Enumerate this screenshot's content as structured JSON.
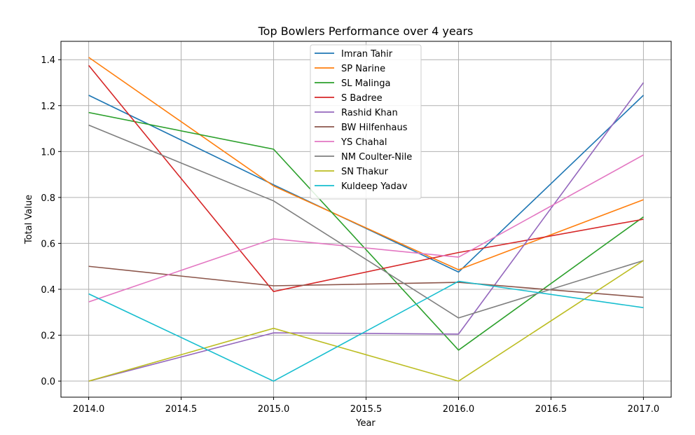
{
  "chart_data": {
    "type": "line",
    "title": "Top Bowlers Performance over 4 years",
    "xlabel": "Year",
    "ylabel": "Total Value",
    "x": [
      2014,
      2015,
      2016,
      2017
    ],
    "xlim": [
      2013.85,
      2017.15
    ],
    "ylim": [
      -0.07,
      1.48
    ],
    "xticks": [
      "2014.0",
      "2014.5",
      "2015.0",
      "2015.5",
      "2016.0",
      "2016.5",
      "2017.0"
    ],
    "yticks": [
      "0.0",
      "0.2",
      "0.4",
      "0.6",
      "0.8",
      "1.0",
      "1.2",
      "1.4"
    ],
    "grid": true,
    "legend_position": "upper center",
    "series": [
      {
        "name": "Imran Tahir",
        "color": "#1f77b4",
        "values": [
          1.245,
          0.855,
          0.475,
          1.245
        ]
      },
      {
        "name": "SP Narine",
        "color": "#ff7f0e",
        "values": [
          1.41,
          0.85,
          0.485,
          0.79
        ]
      },
      {
        "name": "SL Malinga",
        "color": "#2ca02c",
        "values": [
          1.17,
          1.01,
          0.135,
          0.715
        ]
      },
      {
        "name": "S Badree",
        "color": "#d62728",
        "values": [
          1.375,
          0.39,
          0.56,
          0.705
        ]
      },
      {
        "name": "Rashid Khan",
        "color": "#9467bd",
        "values": [
          0.0,
          0.21,
          0.205,
          1.3
        ]
      },
      {
        "name": "BW Hilfenhaus",
        "color": "#8c564b",
        "values": [
          0.5,
          0.415,
          0.43,
          0.365
        ]
      },
      {
        "name": "YS Chahal",
        "color": "#e377c2",
        "values": [
          0.345,
          0.62,
          0.54,
          0.985
        ]
      },
      {
        "name": "NM Coulter-Nile",
        "color": "#7f7f7f",
        "values": [
          1.115,
          0.785,
          0.275,
          0.525
        ]
      },
      {
        "name": "SN Thakur",
        "color": "#bcbd22",
        "values": [
          0.0,
          0.23,
          0.0,
          0.525
        ]
      },
      {
        "name": "Kuldeep Yadav",
        "color": "#17becf",
        "values": [
          0.38,
          0.0,
          0.435,
          0.32
        ]
      }
    ]
  }
}
